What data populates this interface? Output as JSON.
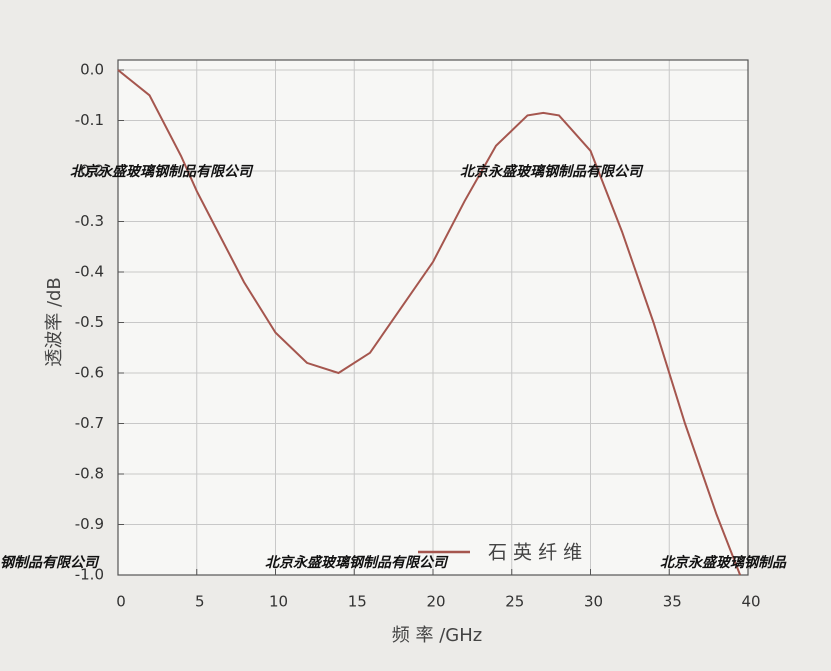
{
  "chart_data": {
    "type": "line",
    "x_label": "频 率 /GHz",
    "y_label": "透波率 /dB",
    "x": [
      0,
      2,
      4,
      5,
      6,
      8,
      10,
      12,
      14,
      16,
      18,
      20,
      22,
      24,
      26,
      27,
      28,
      30,
      32,
      34,
      36,
      38,
      39.5
    ],
    "series": [
      {
        "name": "石 英 纤 维",
        "color": "#a5564e",
        "values": [
          0,
          -0.05,
          -0.17,
          -0.24,
          -0.3,
          -0.42,
          -0.52,
          -0.58,
          -0.6,
          -0.56,
          -0.47,
          -0.38,
          -0.26,
          -0.15,
          -0.09,
          -0.085,
          -0.09,
          -0.16,
          -0.32,
          -0.5,
          -0.7,
          -0.88,
          -1.0
        ]
      }
    ],
    "xlim": [
      0,
      40
    ],
    "xticks": [
      0,
      5,
      10,
      15,
      20,
      25,
      30,
      35,
      40
    ],
    "ylim": [
      -1.0,
      0.0
    ],
    "yticks": [
      {
        "value": -1.0,
        "label": "-1.0"
      },
      -0.9,
      -0.8,
      -0.7,
      -0.6,
      -0.5,
      -0.4,
      -0.3,
      -0.2,
      -0.1,
      {
        "value": 0.0,
        "label": "0.0"
      }
    ],
    "grid": true,
    "legend": "bottom",
    "annotations": [
      "北京永盛玻璃钢制品有限公司",
      "北京永盛玻璃钢制品有限公司",
      "钢制品有限公司",
      "北京永盛玻璃钢制品有限公司",
      "北京永盛玻璃钢制品"
    ]
  }
}
